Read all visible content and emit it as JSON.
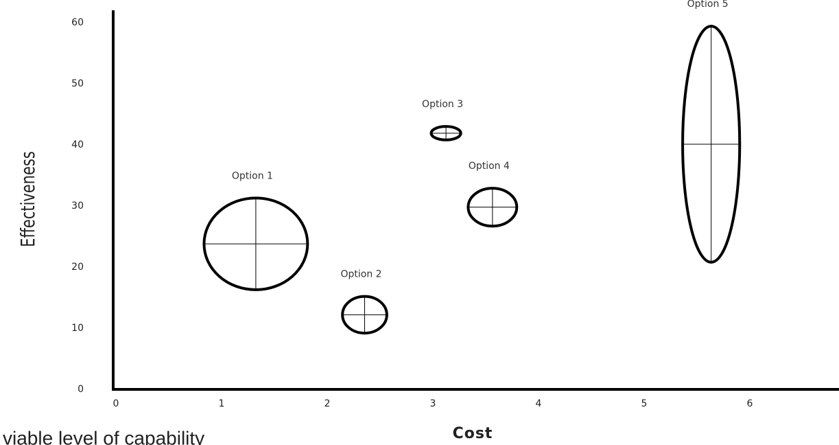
{
  "chart_data": {
    "type": "scatter",
    "x_label": "Cost",
    "y_label": "Effectiveness",
    "annotation": "viable level of capability",
    "labels": [
      "Option 1",
      "Option 2",
      "Option 3",
      "Option 4",
      "Option 5"
    ],
    "x": [
      1.35,
      2.38,
      3.15,
      3.59,
      5.66
    ],
    "x_err": [
      0.49,
      0.21,
      0.14,
      0.23,
      0.27
    ],
    "y": [
      23.8,
      12.2,
      41.9,
      29.8,
      40.1
    ],
    "y_err": [
      7.5,
      3.0,
      1.1,
      3.1,
      19.3
    ],
    "color": "#000000",
    "xlim": [
      0,
      6.87
    ],
    "xticks": [
      0,
      1,
      2,
      3,
      4,
      5,
      6
    ],
    "ylim": [
      0,
      62
    ],
    "yticks": [
      0,
      10,
      20,
      30,
      40,
      50,
      60
    ],
    "grid": false
  }
}
